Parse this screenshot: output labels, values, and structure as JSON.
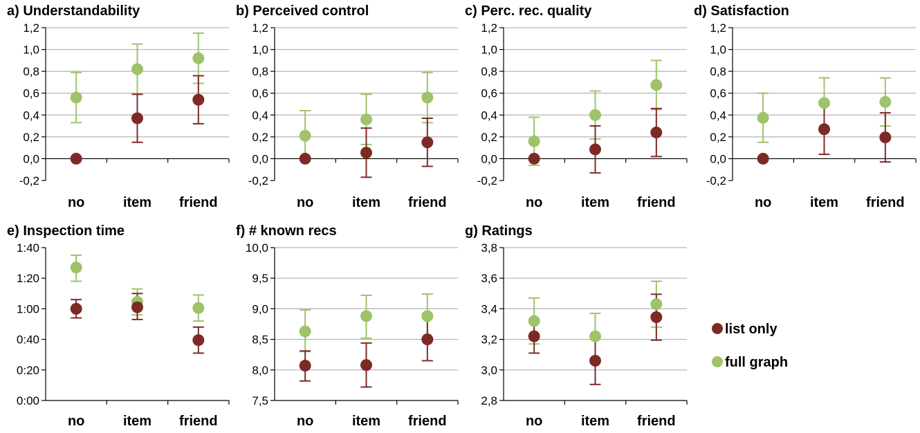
{
  "colors": {
    "list_only": "#7d2a27",
    "full_graph": "#9ec36a",
    "grid": "#b3b3b3",
    "axis": "#000000"
  },
  "legend": {
    "placement": "right-bottom",
    "items": [
      {
        "label": "list only",
        "color": "#7d2a27"
      },
      {
        "label": "full graph",
        "color": "#9ec36a"
      }
    ]
  },
  "chart_data": [
    {
      "type": "scatter",
      "id": "a",
      "title": "a) Understandability",
      "categories": [
        "no",
        "item",
        "friend"
      ],
      "yticks": [
        "-0,2",
        "0,0",
        "0,2",
        "0,4",
        "0,6",
        "0,8",
        "1,0",
        "1,2"
      ],
      "ylim": [
        -0.2,
        1.2
      ],
      "grid": true,
      "series": [
        {
          "name": "list only",
          "values": [
            0.0,
            0.37,
            0.54
          ],
          "err_low": [
            0.0,
            0.15,
            0.32
          ],
          "err_high": [
            0.0,
            0.59,
            0.76
          ]
        },
        {
          "name": "full graph",
          "values": [
            0.56,
            0.82,
            0.92
          ],
          "err_low": [
            0.33,
            0.59,
            0.69
          ],
          "err_high": [
            0.79,
            1.05,
            1.15
          ]
        }
      ]
    },
    {
      "type": "scatter",
      "id": "b",
      "title": "b) Perceived control",
      "categories": [
        "no",
        "item",
        "friend"
      ],
      "yticks": [
        "-0,2",
        "0,0",
        "0,2",
        "0,4",
        "0,6",
        "0,8",
        "1,0",
        "1,2"
      ],
      "ylim": [
        -0.2,
        1.2
      ],
      "grid": true,
      "series": [
        {
          "name": "list only",
          "values": [
            0.0,
            0.055,
            0.15
          ],
          "err_low": [
            0.0,
            -0.17,
            -0.07
          ],
          "err_high": [
            0.0,
            0.28,
            0.37
          ]
        },
        {
          "name": "full graph",
          "values": [
            0.21,
            0.36,
            0.56
          ],
          "err_low": [
            -0.02,
            0.13,
            0.33
          ],
          "err_high": [
            0.44,
            0.59,
            0.79
          ]
        }
      ]
    },
    {
      "type": "scatter",
      "id": "c",
      "title": "c) Perc. rec. quality",
      "categories": [
        "no",
        "item",
        "friend"
      ],
      "yticks": [
        "-0,2",
        "0,0",
        "0,2",
        "0,4",
        "0,6",
        "0,8",
        "1,0",
        "1,2"
      ],
      "ylim": [
        -0.2,
        1.2
      ],
      "grid": true,
      "series": [
        {
          "name": "list only",
          "values": [
            0.0,
            0.085,
            0.24
          ],
          "err_low": [
            0.0,
            -0.13,
            0.02
          ],
          "err_high": [
            0.0,
            0.3,
            0.46
          ]
        },
        {
          "name": "full graph",
          "values": [
            0.16,
            0.4,
            0.675
          ],
          "err_low": [
            -0.06,
            0.18,
            0.45
          ],
          "err_high": [
            0.38,
            0.62,
            0.9
          ]
        }
      ]
    },
    {
      "type": "scatter",
      "id": "d",
      "title": "d) Satisfaction",
      "categories": [
        "no",
        "item",
        "friend"
      ],
      "yticks": [
        "-0,2",
        "0,0",
        "0,2",
        "0,4",
        "0,6",
        "0,8",
        "1,0",
        "1,2"
      ],
      "ylim": [
        -0.2,
        1.2
      ],
      "grid": true,
      "series": [
        {
          "name": "list only",
          "values": [
            0.0,
            0.27,
            0.195
          ],
          "err_low": [
            0.0,
            0.04,
            -0.03
          ],
          "err_high": [
            0.0,
            0.5,
            0.42
          ]
        },
        {
          "name": "full graph",
          "values": [
            0.375,
            0.51,
            0.52
          ],
          "err_low": [
            0.15,
            0.28,
            0.3
          ],
          "err_high": [
            0.6,
            0.74,
            0.74
          ]
        }
      ]
    },
    {
      "type": "scatter",
      "id": "e",
      "title": "e) Inspection time",
      "categories": [
        "no",
        "item",
        "friend"
      ],
      "yticks": [
        "0:00",
        "0:20",
        "0:40",
        "1:00",
        "1:20",
        "1:40"
      ],
      "ylim": [
        0,
        100
      ],
      "grid": false,
      "series": [
        {
          "name": "list only",
          "values": [
            60,
            61,
            39.5
          ],
          "err_low": [
            54,
            53,
            31
          ],
          "err_high": [
            66,
            70,
            48
          ]
        },
        {
          "name": "full graph",
          "values": [
            87,
            64.5,
            60.5
          ],
          "err_low": [
            78,
            56,
            52
          ],
          "err_high": [
            95,
            73,
            69
          ]
        }
      ]
    },
    {
      "type": "scatter",
      "id": "f",
      "title": "f) # known recs",
      "categories": [
        "no",
        "item",
        "friend"
      ],
      "yticks": [
        "7,5",
        "8,0",
        "8,5",
        "9,0",
        "9,5",
        "10,0"
      ],
      "ylim": [
        7.5,
        10.0
      ],
      "grid": true,
      "series": [
        {
          "name": "list only",
          "values": [
            8.07,
            8.08,
            8.5
          ],
          "err_low": [
            7.82,
            7.72,
            8.15
          ],
          "err_high": [
            8.31,
            8.44,
            8.85
          ]
        },
        {
          "name": "full graph",
          "values": [
            8.63,
            8.88,
            8.88
          ],
          "err_low": [
            8.3,
            8.52,
            8.52
          ],
          "err_high": [
            8.98,
            9.22,
            9.24
          ]
        }
      ]
    },
    {
      "type": "scatter",
      "id": "g",
      "title": "g) Ratings",
      "categories": [
        "no",
        "item",
        "friend"
      ],
      "yticks": [
        "2,8",
        "3,0",
        "3,2",
        "3,4",
        "3,6",
        "3,8"
      ],
      "ylim": [
        2.8,
        3.8
      ],
      "grid": true,
      "series": [
        {
          "name": "list only",
          "values": [
            3.22,
            3.06,
            3.345
          ],
          "err_low": [
            3.11,
            2.905,
            3.195
          ],
          "err_high": [
            3.33,
            3.215,
            3.495
          ]
        },
        {
          "name": "full graph",
          "values": [
            3.32,
            3.22,
            3.43
          ],
          "err_low": [
            3.17,
            3.07,
            3.28
          ],
          "err_high": [
            3.47,
            3.37,
            3.58
          ]
        }
      ]
    }
  ]
}
